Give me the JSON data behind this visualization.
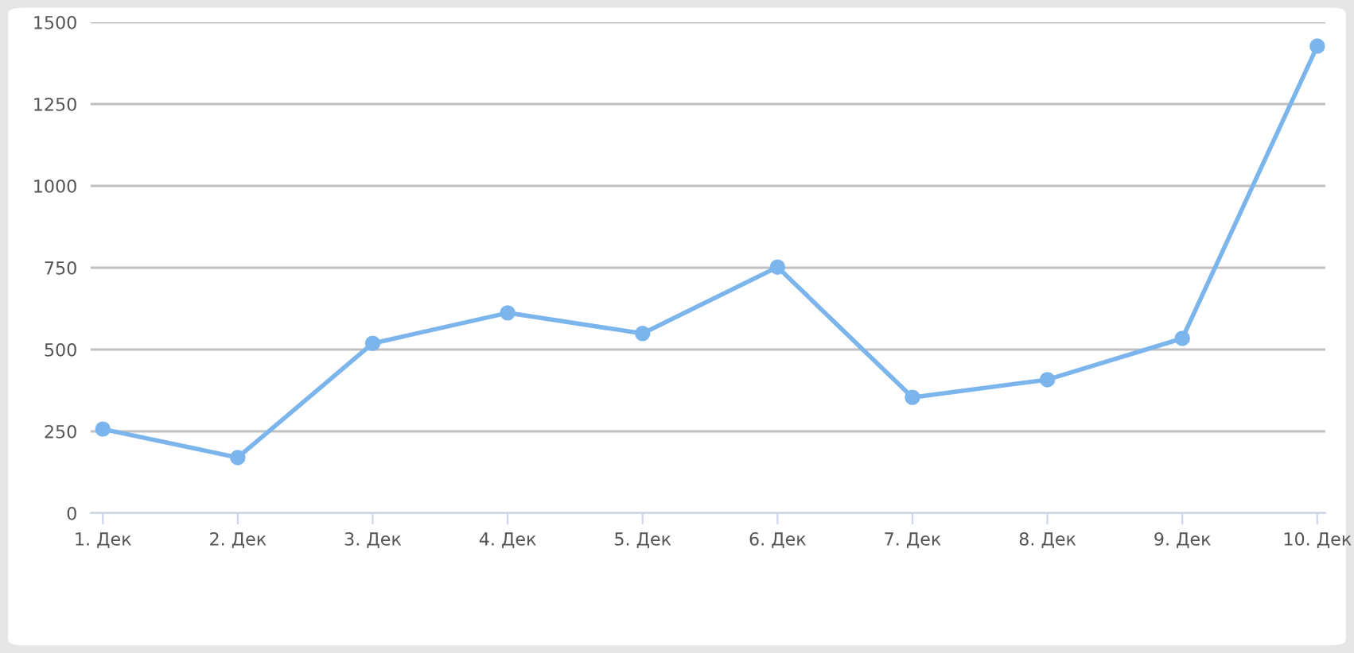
{
  "chart_data": {
    "type": "line",
    "categories": [
      "1. Дек",
      "2. Дек",
      "3. Дек",
      "4. Дек",
      "5. Дек",
      "6. Дек",
      "7. Дек",
      "8. Дек",
      "9. Дек",
      "10. Дек"
    ],
    "series": [
      {
        "color": "#7cb5ec",
        "values": [
          257,
          170,
          519,
          612,
          549,
          752,
          354,
          408,
          534,
          1427
        ]
      }
    ],
    "ylim": [
      0,
      1500
    ],
    "yticks": [
      0,
      250,
      500,
      750,
      1000,
      1250,
      1500
    ],
    "grid": "y",
    "legend": false,
    "marker": "circle",
    "line_style": "solid"
  }
}
